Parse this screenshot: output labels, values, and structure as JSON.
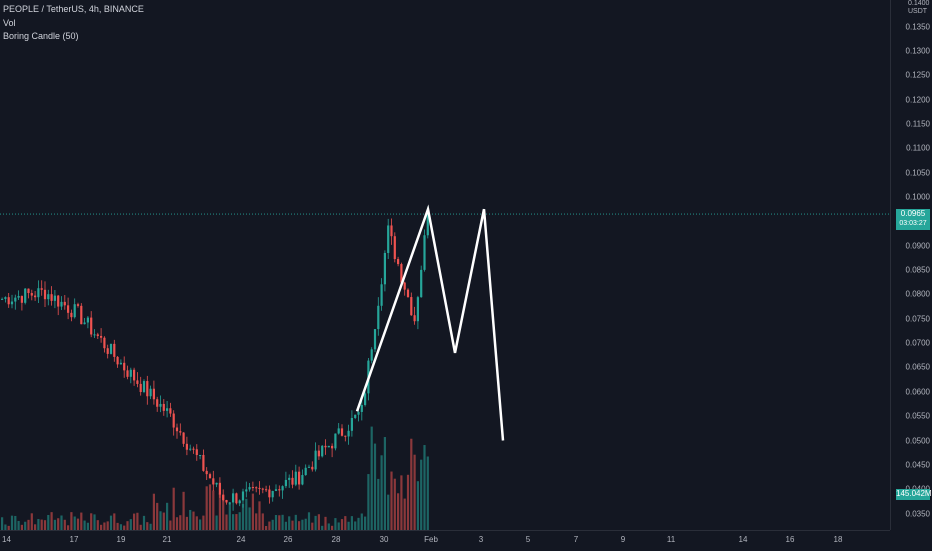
{
  "legend": {
    "symbol": "PEOPLE / TetherUS, 4h, BINANCE",
    "volume": "Vol",
    "indicator": "Boring Candle (50)"
  },
  "price_axis": {
    "top_label": "0.1400",
    "unit": "USDT",
    "ticks": [
      "0.1350",
      "0.1300",
      "0.1250",
      "0.1200",
      "0.1150",
      "0.1100",
      "0.1050",
      "0.1000",
      "0.0900",
      "0.0850",
      "0.0800",
      "0.0750",
      "0.0700",
      "0.0650",
      "0.0600",
      "0.0550",
      "0.0500",
      "0.0450",
      "0.0400",
      "0.0350"
    ]
  },
  "price_tag": {
    "price": "0.0965",
    "countdown": "03:03:27"
  },
  "volume_tag": "145.042M",
  "time_axis": {
    "ticks": [
      "14",
      "17",
      "19",
      "21",
      "24",
      "26",
      "28",
      "30",
      "Feb",
      "3",
      "5",
      "7",
      "9",
      "11",
      "14",
      "16",
      "18"
    ]
  },
  "colors": {
    "background": "#131722",
    "up": "#26a69a",
    "down": "#ef5350",
    "drawing": "#ffffff",
    "price_line": "#26a69a"
  },
  "chart_data": {
    "type": "candlestick",
    "symbol": "PEOPLE / TetherUS",
    "interval": "4h",
    "exchange": "BINANCE",
    "last_price": 0.0965,
    "price_range": [
      0.033,
      0.14
    ],
    "segments": [
      {
        "from": 0.079,
        "to": 0.0805,
        "count": 14
      },
      {
        "from": 0.0805,
        "to": 0.076,
        "count": 10
      },
      {
        "from": 0.076,
        "to": 0.065,
        "count": 14
      },
      {
        "from": 0.065,
        "to": 0.055,
        "count": 14
      },
      {
        "from": 0.055,
        "to": 0.038,
        "count": 16
      },
      {
        "from": 0.038,
        "to": 0.039,
        "count": 10
      },
      {
        "from": 0.039,
        "to": 0.042,
        "count": 12
      },
      {
        "from": 0.042,
        "to": 0.056,
        "count": 20
      },
      {
        "from": 0.056,
        "to": 0.093,
        "count": 8
      },
      {
        "from": 0.093,
        "to": 0.075,
        "count": 8
      },
      {
        "from": 0.075,
        "to": 0.0965,
        "count": 4
      }
    ],
    "drawing_m_pattern": [
      {
        "price": 0.056
      },
      {
        "price": 0.0975
      },
      {
        "price": 0.068
      },
      {
        "price": 0.0975
      },
      {
        "price": 0.05
      }
    ]
  }
}
